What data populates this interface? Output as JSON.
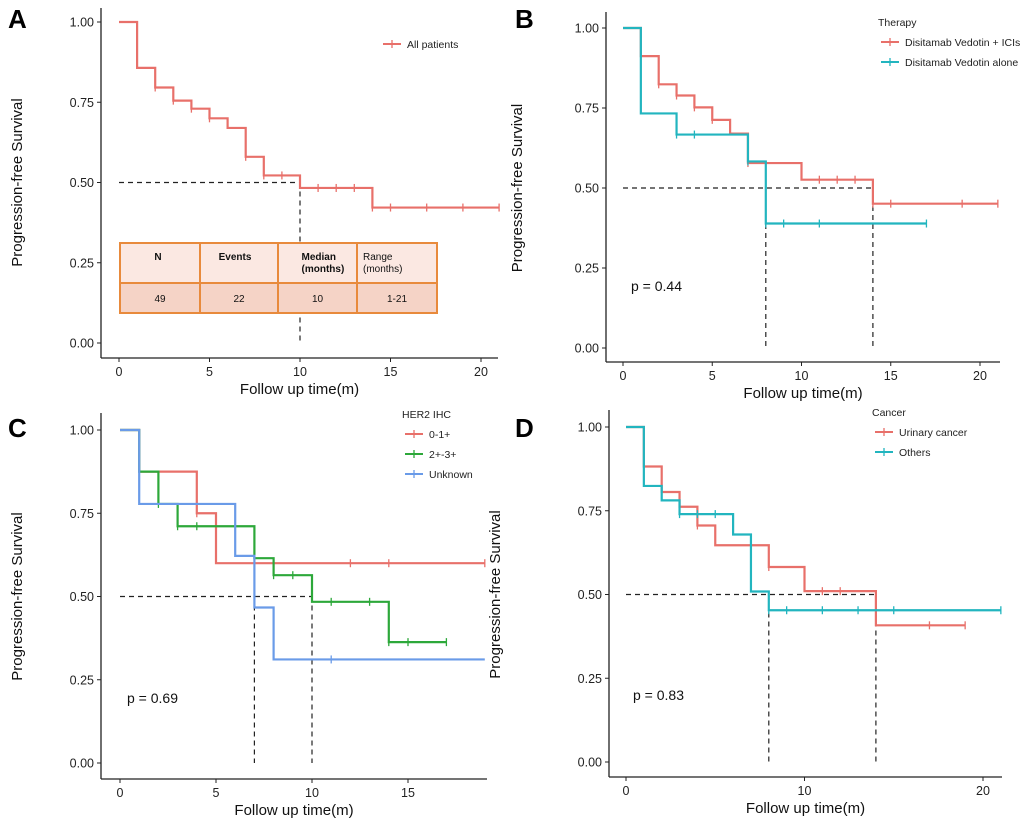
{
  "figure": {
    "panels": [
      "A",
      "B",
      "C",
      "D"
    ]
  },
  "chart_data": [
    {
      "panel": "A",
      "type": "line",
      "subtype": "kaplan-meier",
      "title": "",
      "xlabel": "Follow up time(m)",
      "ylabel": "Progression-free Survival",
      "xlim": [
        0,
        21
      ],
      "ylim": [
        0,
        1
      ],
      "xticks": [
        0,
        5,
        10,
        15,
        20
      ],
      "yticks": [
        "0.00",
        "0.25",
        "0.50",
        "0.75",
        "1.00"
      ],
      "legend": {
        "title": "",
        "position": "top-right"
      },
      "series": [
        {
          "name": "All patients",
          "color": "#E8706A",
          "steps": [
            [
              0,
              1.0
            ],
            [
              1,
              0.857
            ],
            [
              2,
              0.796
            ],
            [
              3,
              0.755
            ],
            [
              4,
              0.73
            ],
            [
              5,
              0.7
            ],
            [
              6,
              0.67
            ],
            [
              7,
              0.58
            ],
            [
              8,
              0.522
            ],
            [
              10,
              0.483
            ],
            [
              14,
              0.422
            ],
            [
              21,
              0.422
            ]
          ],
          "censor": [
            [
              2,
              0.796
            ],
            [
              3,
              0.755
            ],
            [
              4,
              0.73
            ],
            [
              5,
              0.7
            ],
            [
              7,
              0.58
            ],
            [
              8,
              0.522
            ],
            [
              9,
              0.522
            ],
            [
              11,
              0.483
            ],
            [
              12,
              0.483
            ],
            [
              13,
              0.483
            ],
            [
              14,
              0.422
            ],
            [
              15,
              0.422
            ],
            [
              17,
              0.422
            ],
            [
              19,
              0.422
            ],
            [
              21,
              0.422
            ]
          ]
        }
      ],
      "median_lines": [
        10
      ],
      "table": {
        "headers": [
          "N",
          "Events",
          "Median (months)",
          "Range (months)"
        ],
        "values": [
          "49",
          "22",
          "10",
          "1-21"
        ]
      }
    },
    {
      "panel": "B",
      "type": "line",
      "subtype": "kaplan-meier",
      "xlabel": "Follow up time(m)",
      "ylabel": "Progression-free Survival",
      "xlim": [
        0,
        21
      ],
      "ylim": [
        0,
        1
      ],
      "xticks": [
        0,
        5,
        10,
        15,
        20
      ],
      "yticks": [
        "0.00",
        "0.25",
        "0.50",
        "0.75",
        "1.00"
      ],
      "legend": {
        "title": "Therapy",
        "position": "top-right"
      },
      "annotation": "p = 0.44",
      "series": [
        {
          "name": "Disitamab Vedotin + ICIs",
          "color": "#E8706A",
          "steps": [
            [
              0,
              1.0
            ],
            [
              1,
              0.912
            ],
            [
              2,
              0.824
            ],
            [
              3,
              0.789
            ],
            [
              4,
              0.752
            ],
            [
              5,
              0.713
            ],
            [
              6,
              0.67
            ],
            [
              7,
              0.578
            ],
            [
              10,
              0.526
            ],
            [
              14,
              0.451
            ],
            [
              21,
              0.451
            ]
          ],
          "censor": [
            [
              2,
              0.824
            ],
            [
              3,
              0.789
            ],
            [
              4,
              0.752
            ],
            [
              5,
              0.713
            ],
            [
              7,
              0.578
            ],
            [
              11,
              0.526
            ],
            [
              12,
              0.526
            ],
            [
              13,
              0.526
            ],
            [
              14,
              0.451
            ],
            [
              15,
              0.451
            ],
            [
              19,
              0.451
            ],
            [
              21,
              0.451
            ]
          ]
        },
        {
          "name": "Disitamab Vedotin alone",
          "color": "#22B5BF",
          "steps": [
            [
              0,
              1.0
            ],
            [
              1,
              0.733
            ],
            [
              3,
              0.667
            ],
            [
              7,
              0.583
            ],
            [
              8,
              0.389
            ],
            [
              17,
              0.389
            ]
          ],
          "censor": [
            [
              3,
              0.667
            ],
            [
              4,
              0.667
            ],
            [
              7,
              0.583
            ],
            [
              8,
              0.389
            ],
            [
              9,
              0.389
            ],
            [
              11,
              0.389
            ],
            [
              17,
              0.389
            ]
          ]
        }
      ],
      "median_lines": [
        8,
        14
      ]
    },
    {
      "panel": "C",
      "type": "line",
      "subtype": "kaplan-meier",
      "xlabel": "Follow up time(m)",
      "ylabel": "Progression-free Survival",
      "xlim": [
        0,
        19
      ],
      "ylim": [
        0,
        1
      ],
      "xticks": [
        0,
        5,
        10,
        15
      ],
      "yticks": [
        "0.00",
        "0.25",
        "0.50",
        "0.75",
        "1.00"
      ],
      "legend": {
        "title": "HER2 IHC",
        "position": "top-right"
      },
      "annotation": "p = 0.69",
      "series": [
        {
          "name": "0-1+",
          "color": "#E8706A",
          "steps": [
            [
              0,
              1.0
            ],
            [
              1,
              0.875
            ],
            [
              4,
              0.75
            ],
            [
              5,
              0.6
            ],
            [
              19,
              0.6
            ]
          ],
          "censor": [
            [
              4,
              0.75
            ],
            [
              12,
              0.6
            ],
            [
              14,
              0.6
            ],
            [
              19,
              0.6
            ]
          ]
        },
        {
          "name": "2+-3+",
          "color": "#2DA83A",
          "steps": [
            [
              0,
              1.0
            ],
            [
              1,
              0.875
            ],
            [
              2,
              0.778
            ],
            [
              3,
              0.711
            ],
            [
              7,
              0.615
            ],
            [
              8,
              0.564
            ],
            [
              10,
              0.484
            ],
            [
              14,
              0.363
            ],
            [
              17,
              0.363
            ]
          ],
          "censor": [
            [
              2,
              0.778
            ],
            [
              3,
              0.711
            ],
            [
              4,
              0.711
            ],
            [
              7,
              0.615
            ],
            [
              8,
              0.564
            ],
            [
              9,
              0.564
            ],
            [
              11,
              0.484
            ],
            [
              13,
              0.484
            ],
            [
              14,
              0.363
            ],
            [
              15,
              0.363
            ],
            [
              17,
              0.363
            ]
          ]
        },
        {
          "name": "Unknown",
          "color": "#6A9BE8",
          "steps": [
            [
              0,
              1.0
            ],
            [
              1,
              0.778
            ],
            [
              6,
              0.622
            ],
            [
              7,
              0.467
            ],
            [
              8,
              0.311
            ],
            [
              19,
              0.311
            ]
          ],
          "censor": [
            [
              11,
              0.311
            ]
          ]
        }
      ],
      "median_lines": [
        7,
        10
      ]
    },
    {
      "panel": "D",
      "type": "line",
      "subtype": "kaplan-meier",
      "xlabel": "Follow up time(m)",
      "ylabel": "Progression-free Survival",
      "xlim": [
        0,
        21
      ],
      "ylim": [
        0,
        1
      ],
      "xticks": [
        0,
        10,
        20
      ],
      "yticks": [
        "0.00",
        "0.25",
        "0.50",
        "0.75",
        "1.00"
      ],
      "legend": {
        "title": "Cancer",
        "position": "top-right"
      },
      "annotation": "p = 0.83",
      "series": [
        {
          "name": "Urinary cancer",
          "color": "#E8706A",
          "steps": [
            [
              0,
              1.0
            ],
            [
              1,
              0.882
            ],
            [
              2,
              0.806
            ],
            [
              3,
              0.762
            ],
            [
              4,
              0.706
            ],
            [
              5,
              0.647
            ],
            [
              8,
              0.582
            ],
            [
              10,
              0.51
            ],
            [
              14,
              0.408
            ],
            [
              19,
              0.408
            ]
          ],
          "censor": [
            [
              2,
              0.806
            ],
            [
              3,
              0.762
            ],
            [
              4,
              0.706
            ],
            [
              8,
              0.582
            ],
            [
              11,
              0.51
            ],
            [
              12,
              0.51
            ],
            [
              17,
              0.408
            ],
            [
              19,
              0.408
            ]
          ]
        },
        {
          "name": "Others",
          "color": "#22B5BF",
          "steps": [
            [
              0,
              1.0
            ],
            [
              1,
              0.824
            ],
            [
              2,
              0.781
            ],
            [
              3,
              0.74
            ],
            [
              6,
              0.679
            ],
            [
              7,
              0.509
            ],
            [
              8,
              0.453
            ],
            [
              21,
              0.453
            ]
          ],
          "censor": [
            [
              3,
              0.74
            ],
            [
              4,
              0.74
            ],
            [
              5,
              0.74
            ],
            [
              8,
              0.453
            ],
            [
              9,
              0.453
            ],
            [
              11,
              0.453
            ],
            [
              13,
              0.453
            ],
            [
              15,
              0.453
            ],
            [
              21,
              0.453
            ]
          ]
        }
      ],
      "median_lines": [
        8,
        14
      ]
    }
  ]
}
